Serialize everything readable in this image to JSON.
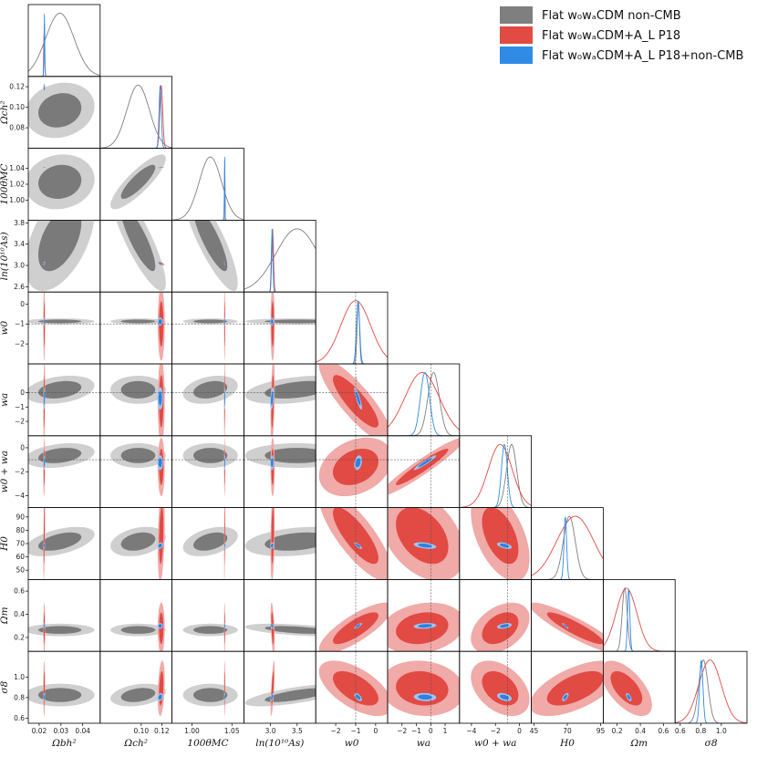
{
  "legend": [
    {
      "label": "Flat w₀wₐCDM non-CMB",
      "color": "#7f7f7f"
    },
    {
      "label": "Flat w₀wₐCDM+A_L P18",
      "color": "#e24a44"
    },
    {
      "label": "Flat w₀wₐCDM+A_L P18+non-CMB",
      "color": "#2f8be6"
    }
  ],
  "chart_data": {
    "type": "corner",
    "parameters": [
      {
        "key": "obh2",
        "label": "Ωbh²",
        "range": [
          0.015,
          0.048
        ],
        "ticks": [
          0.02,
          0.03,
          0.04
        ],
        "tick_labels": [
          "0.02",
          "0.03",
          "0.04"
        ]
      },
      {
        "key": "och2",
        "label": "Ωch²",
        "range": [
          0.06,
          0.13
        ],
        "ticks": [
          0.08,
          0.1,
          0.12
        ],
        "tick_labels": [
          "0.08",
          "0.10",
          "0.12"
        ],
        "x_ticks": [
          0.1,
          0.12
        ],
        "x_tick_labels": [
          "0.10",
          "0.12"
        ]
      },
      {
        "key": "theta",
        "label": "100θMC",
        "range": [
          0.975,
          1.065
        ],
        "ticks": [
          1.0,
          1.02,
          1.04
        ],
        "tick_labels": [
          "1.00",
          "1.02",
          "1.04"
        ],
        "x_ticks": [
          1.0,
          1.05
        ],
        "x_tick_labels": [
          "1.00",
          "1.05"
        ]
      },
      {
        "key": "lnAs",
        "label": "ln(10¹⁰As)",
        "range": [
          2.5,
          3.85
        ],
        "ticks": [
          2.6,
          3.0,
          3.4,
          3.8
        ],
        "tick_labels": [
          "2.6",
          "3.0",
          "3.4",
          "3.8"
        ],
        "x_ticks": [
          3.0,
          3.5
        ],
        "x_tick_labels": [
          "3.0",
          "3.5"
        ]
      },
      {
        "key": "w0",
        "label": "w0",
        "range": [
          -3.0,
          0.6
        ],
        "ticks": [
          -2,
          -1,
          0
        ],
        "tick_labels": [
          "−2",
          "−1",
          "0"
        ]
      },
      {
        "key": "wa",
        "label": "wa",
        "range": [
          -3.0,
          2.0
        ],
        "ticks": [
          -2,
          -1,
          0
        ],
        "tick_labels": [
          "−2",
          "−1",
          "0"
        ],
        "x_ticks": [
          -2,
          -1,
          0,
          1
        ],
        "x_tick_labels": [
          "−2",
          "−1",
          "0",
          "1"
        ]
      },
      {
        "key": "w0wa",
        "label": "w0 + wa",
        "range": [
          -5.0,
          1.0
        ],
        "ticks": [
          -4,
          -2,
          0
        ],
        "tick_labels": [
          "−4",
          "−2",
          "0"
        ]
      },
      {
        "key": "H0",
        "label": "H0",
        "range": [
          43,
          97
        ],
        "ticks": [
          50,
          60,
          70,
          80,
          90
        ],
        "tick_labels": [
          "50",
          "60",
          "70",
          "80",
          "90"
        ],
        "x_ticks": [
          45,
          70,
          95
        ],
        "x_tick_labels": [
          "45",
          "70",
          "95"
        ]
      },
      {
        "key": "Om",
        "label": "Ωm",
        "range": [
          0.08,
          0.7
        ],
        "ticks": [
          0.2,
          0.4,
          0.6
        ],
        "tick_labels": [
          "0.2",
          "0.4",
          "0.6"
        ]
      },
      {
        "key": "s8",
        "label": "σ8",
        "range": [
          0.55,
          1.25
        ],
        "ticks": [
          0.6,
          0.8,
          1.0
        ],
        "tick_labels": [
          "0.6",
          "0.8",
          "1.0"
        ]
      }
    ],
    "reference_lines": {
      "w0": -1,
      "wa": 0,
      "w0wa": -1
    },
    "series": [
      {
        "name": "Flat w₀wₐCDM non-CMB",
        "color": "#7f7f7f",
        "fill_inner": "#7a7a7a",
        "fill_outer": "#cfcfcf",
        "stats": {
          "obh2": [
            0.0295,
            0.0065
          ],
          "och2": [
            0.097,
            0.011
          ],
          "theta": [
            1.023,
            0.014
          ],
          "lnAs": [
            3.5,
            0.4
          ],
          "w0": [
            -0.87,
            0.06
          ],
          "wa": [
            0.2,
            0.4
          ],
          "w0wa": [
            -0.65,
            0.42
          ],
          "H0": [
            71.5,
            4.5
          ],
          "Om": [
            0.265,
            0.022
          ],
          "s8": [
            0.825,
            0.045
          ]
        }
      },
      {
        "name": "Flat w₀wₐCDM+A_L P18",
        "color": "#e24a44",
        "fill_inner": "#e24a44",
        "fill_outer": "#f0aaa8",
        "stats": {
          "obh2": [
            0.02232,
            0.00017
          ],
          "och2": [
            0.1195,
            0.0014
          ],
          "theta": [
            1.0409,
            0.0003
          ],
          "lnAs": [
            3.04,
            0.016
          ],
          "w0": [
            -1.0,
            0.75
          ],
          "wa": [
            -0.6,
            1.2
          ],
          "w0wa": [
            -1.6,
            1.0
          ],
          "H0": [
            76,
            14
          ],
          "Om": [
            0.28,
            0.09
          ],
          "s8": [
            0.89,
            0.11
          ]
        }
      },
      {
        "name": "Flat w₀wₐCDM+A_L P18+non-CMB",
        "color": "#2f8be6",
        "fill_inner": "#2f80e0",
        "fill_outer": "#9cc6f2",
        "stats": {
          "obh2": [
            0.0224,
            0.00015
          ],
          "och2": [
            0.1185,
            0.0011
          ],
          "theta": [
            1.041,
            0.0003
          ],
          "lnAs": [
            3.03,
            0.014
          ],
          "w0": [
            -0.88,
            0.08
          ],
          "wa": [
            -0.4,
            0.32
          ],
          "w0wa": [
            -1.25,
            0.25
          ],
          "H0": [
            68.5,
            1.0
          ],
          "Om": [
            0.3,
            0.01
          ],
          "s8": [
            0.805,
            0.016
          ]
        }
      }
    ]
  }
}
